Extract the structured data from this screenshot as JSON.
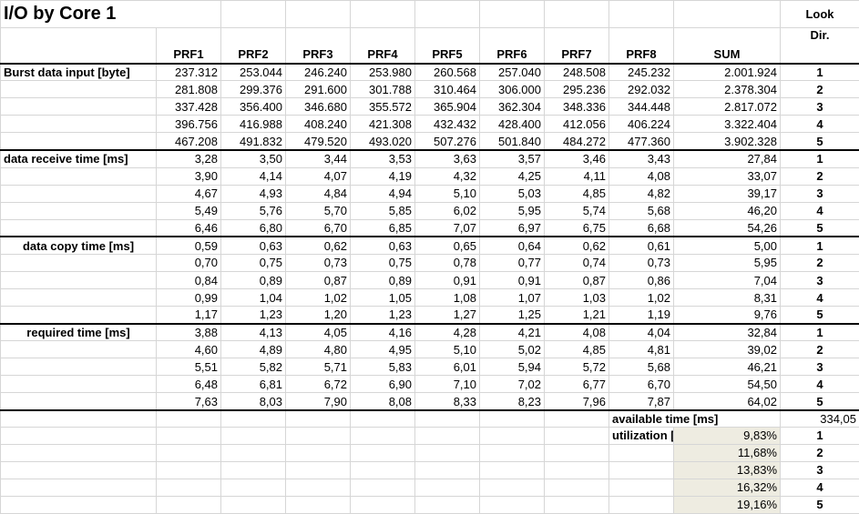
{
  "title": "I/O by Core 1",
  "columns": [
    "PRF1",
    "PRF2",
    "PRF3",
    "PRF4",
    "PRF5",
    "PRF6",
    "PRF7",
    "PRF8"
  ],
  "sum_label": "SUM",
  "look_label_1": "Look",
  "look_label_2": "Dir.",
  "sections": [
    {
      "label": "Burst data input [byte]",
      "label_align": "left",
      "rows": [
        {
          "values": [
            "237.312",
            "253.044",
            "246.240",
            "253.980",
            "260.568",
            "257.040",
            "248.508",
            "245.232"
          ],
          "sum": "2.001.924",
          "dir": "1"
        },
        {
          "values": [
            "281.808",
            "299.376",
            "291.600",
            "301.788",
            "310.464",
            "306.000",
            "295.236",
            "292.032"
          ],
          "sum": "2.378.304",
          "dir": "2"
        },
        {
          "values": [
            "337.428",
            "356.400",
            "346.680",
            "355.572",
            "365.904",
            "362.304",
            "348.336",
            "344.448"
          ],
          "sum": "2.817.072",
          "dir": "3"
        },
        {
          "values": [
            "396.756",
            "416.988",
            "408.240",
            "421.308",
            "432.432",
            "428.400",
            "412.056",
            "406.224"
          ],
          "sum": "3.322.404",
          "dir": "4"
        },
        {
          "values": [
            "467.208",
            "491.832",
            "479.520",
            "493.020",
            "507.276",
            "501.840",
            "484.272",
            "477.360"
          ],
          "sum": "3.902.328",
          "dir": "5"
        }
      ]
    },
    {
      "label": "data receive time [ms]",
      "label_align": "left",
      "rows": [
        {
          "values": [
            "3,28",
            "3,50",
            "3,44",
            "3,53",
            "3,63",
            "3,57",
            "3,46",
            "3,43"
          ],
          "sum": "27,84",
          "dir": "1"
        },
        {
          "values": [
            "3,90",
            "4,14",
            "4,07",
            "4,19",
            "4,32",
            "4,25",
            "4,11",
            "4,08"
          ],
          "sum": "33,07",
          "dir": "2"
        },
        {
          "values": [
            "4,67",
            "4,93",
            "4,84",
            "4,94",
            "5,10",
            "5,03",
            "4,85",
            "4,82"
          ],
          "sum": "39,17",
          "dir": "3"
        },
        {
          "values": [
            "5,49",
            "5,76",
            "5,70",
            "5,85",
            "6,02",
            "5,95",
            "5,74",
            "5,68"
          ],
          "sum": "46,20",
          "dir": "4"
        },
        {
          "values": [
            "6,46",
            "6,80",
            "6,70",
            "6,85",
            "7,07",
            "6,97",
            "6,75",
            "6,68"
          ],
          "sum": "54,26",
          "dir": "5"
        }
      ]
    },
    {
      "label": "data copy time [ms]",
      "label_align": "center",
      "rows": [
        {
          "values": [
            "0,59",
            "0,63",
            "0,62",
            "0,63",
            "0,65",
            "0,64",
            "0,62",
            "0,61"
          ],
          "sum": "5,00",
          "dir": "1"
        },
        {
          "values": [
            "0,70",
            "0,75",
            "0,73",
            "0,75",
            "0,78",
            "0,77",
            "0,74",
            "0,73"
          ],
          "sum": "5,95",
          "dir": "2"
        },
        {
          "values": [
            "0,84",
            "0,89",
            "0,87",
            "0,89",
            "0,91",
            "0,91",
            "0,87",
            "0,86"
          ],
          "sum": "7,04",
          "dir": "3"
        },
        {
          "values": [
            "0,99",
            "1,04",
            "1,02",
            "1,05",
            "1,08",
            "1,07",
            "1,03",
            "1,02"
          ],
          "sum": "8,31",
          "dir": "4"
        },
        {
          "values": [
            "1,17",
            "1,23",
            "1,20",
            "1,23",
            "1,27",
            "1,25",
            "1,21",
            "1,19"
          ],
          "sum": "9,76",
          "dir": "5"
        }
      ]
    },
    {
      "label": "required time  [ms]",
      "label_align": "center",
      "rows": [
        {
          "values": [
            "3,88",
            "4,13",
            "4,05",
            "4,16",
            "4,28",
            "4,21",
            "4,08",
            "4,04"
          ],
          "sum": "32,84",
          "dir": "1"
        },
        {
          "values": [
            "4,60",
            "4,89",
            "4,80",
            "4,95",
            "5,10",
            "5,02",
            "4,85",
            "4,81"
          ],
          "sum": "39,02",
          "dir": "2"
        },
        {
          "values": [
            "5,51",
            "5,82",
            "5,71",
            "5,83",
            "6,01",
            "5,94",
            "5,72",
            "5,68"
          ],
          "sum": "46,21",
          "dir": "3"
        },
        {
          "values": [
            "6,48",
            "6,81",
            "6,72",
            "6,90",
            "7,10",
            "7,02",
            "6,77",
            "6,70"
          ],
          "sum": "54,50",
          "dir": "4"
        },
        {
          "values": [
            "7,63",
            "8,03",
            "7,90",
            "8,08",
            "8,33",
            "8,23",
            "7,96",
            "7,87"
          ],
          "sum": "64,02",
          "dir": "5"
        }
      ]
    }
  ],
  "available_label": "available time [ms]",
  "available_value": "334,05",
  "utilization_label": "utilization [%]",
  "utilization": [
    {
      "value": "9,83%",
      "dir": "1"
    },
    {
      "value": "11,68%",
      "dir": "2"
    },
    {
      "value": "13,83%",
      "dir": "3"
    },
    {
      "value": "16,32%",
      "dir": "4"
    },
    {
      "value": "19,16%",
      "dir": "5"
    }
  ],
  "colors": {
    "shade": "#eeece1",
    "gridline": "#d6d6d6",
    "separator": "#000000"
  }
}
